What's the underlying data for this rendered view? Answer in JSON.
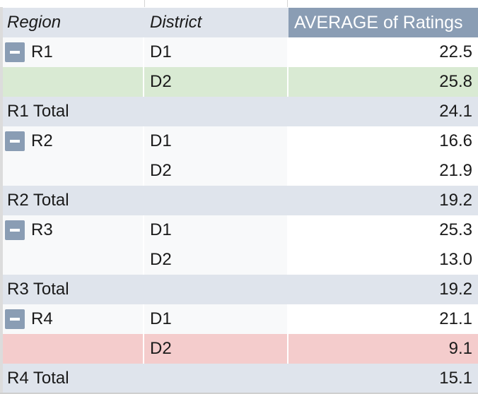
{
  "pivot": {
    "headers": {
      "region": "Region",
      "district": "District",
      "value": "AVERAGE of Ratings"
    },
    "rows": [
      {
        "type": "data",
        "region": "R1",
        "collapse": true,
        "district": "D1",
        "value": "22.5",
        "highlight": "none"
      },
      {
        "type": "data",
        "region": "",
        "collapse": false,
        "district": "D2",
        "value": "25.8",
        "highlight": "green"
      },
      {
        "type": "total",
        "label": "R1 Total",
        "value": "24.1"
      },
      {
        "type": "data",
        "region": "R2",
        "collapse": true,
        "district": "D1",
        "value": "16.6",
        "highlight": "none"
      },
      {
        "type": "data",
        "region": "",
        "collapse": false,
        "district": "D2",
        "value": "21.9",
        "highlight": "none"
      },
      {
        "type": "total",
        "label": "R2 Total",
        "value": "19.2"
      },
      {
        "type": "data",
        "region": "R3",
        "collapse": true,
        "district": "D1",
        "value": "25.3",
        "highlight": "none"
      },
      {
        "type": "data",
        "region": "",
        "collapse": false,
        "district": "D2",
        "value": "13.0",
        "highlight": "none"
      },
      {
        "type": "total",
        "label": "R3 Total",
        "value": "19.2"
      },
      {
        "type": "data",
        "region": "R4",
        "collapse": true,
        "district": "D1",
        "value": "21.1",
        "highlight": "none"
      },
      {
        "type": "data",
        "region": "",
        "collapse": false,
        "district": "D2",
        "value": "9.1",
        "highlight": "red"
      },
      {
        "type": "total",
        "label": "R4 Total",
        "value": "15.1"
      }
    ]
  },
  "colors": {
    "header_bg": "#dfe4ec",
    "value_header_bg": "#8a9db4",
    "green_highlight": "#d9ead3",
    "red_highlight": "#f4cccc"
  },
  "icons": {
    "collapse": "minus-box-icon"
  }
}
